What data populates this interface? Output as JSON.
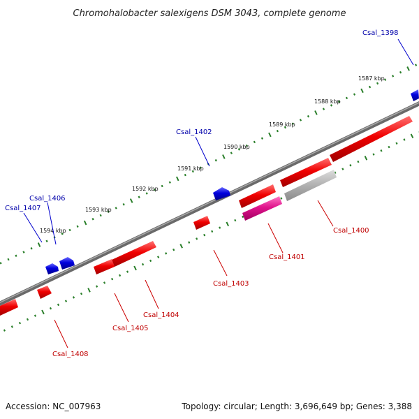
{
  "title": "Chromohalobacter salexigens DSM 3043, complete genome",
  "footer": {
    "accession": "Accession: NC_007963",
    "summary": "Topology: circular; Length: 3,696,649 bp; Genes: 3,388"
  },
  "colors": {
    "backbone": "#808080",
    "forward_gene": "#e00000",
    "reverse_gene": "#0000cc",
    "pink_gene": "#e0138c",
    "grey_gene": "#b4b4b4",
    "tick": "#2a7f2a",
    "forward_label": "#c00000",
    "reverse_label": "#0000aa"
  },
  "ticks": [
    "1587 kbp",
    "1588 kbp",
    "1589 kbp",
    "1590 kbp",
    "1591 kbp",
    "1592 kbp",
    "1593 kbp",
    "1594 kbp"
  ],
  "genes": [
    {
      "label": "Csal_1398",
      "strand": "reverse",
      "color": "reverse"
    },
    {
      "label": "Csal_1400",
      "strand": "forward",
      "color": "forward"
    },
    {
      "label": "Csal_1401",
      "strand": "forward",
      "color": "forward"
    },
    {
      "label": "Csal_1402",
      "strand": "reverse",
      "color": "reverse"
    },
    {
      "label": "Csal_1403",
      "strand": "forward",
      "color": "forward"
    },
    {
      "label": "Csal_1404",
      "strand": "forward",
      "color": "forward"
    },
    {
      "label": "Csal_1405",
      "strand": "forward",
      "color": "forward"
    },
    {
      "label": "Csal_1406",
      "strand": "reverse",
      "color": "reverse"
    },
    {
      "label": "Csal_1407",
      "strand": "reverse",
      "color": "reverse"
    },
    {
      "label": "Csal_1408",
      "strand": "forward",
      "color": "forward"
    }
  ]
}
